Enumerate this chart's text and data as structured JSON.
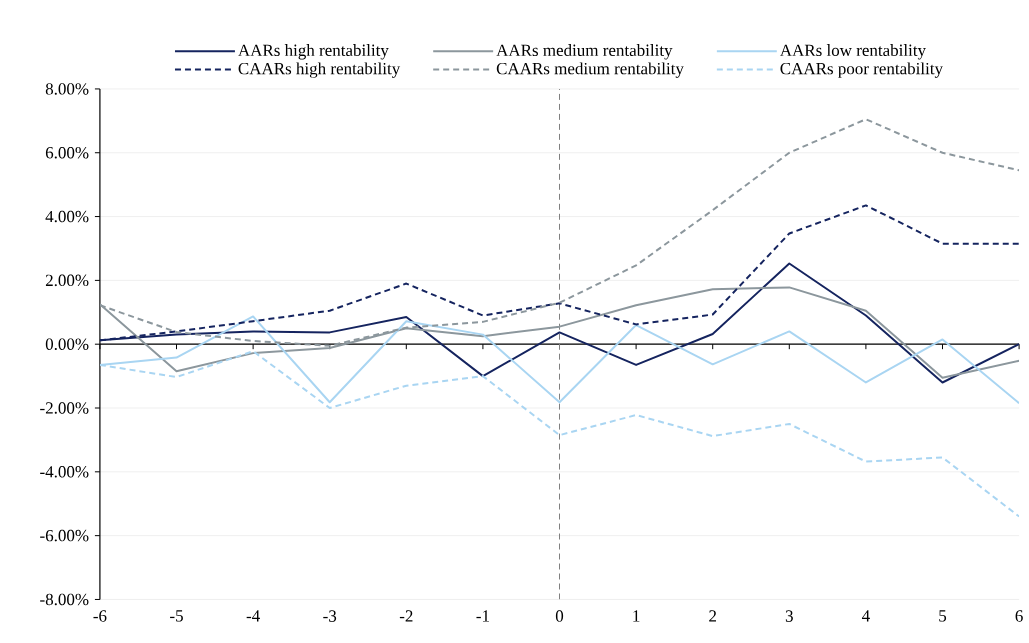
{
  "chart_data": {
    "type": "line",
    "x": [
      -6,
      -5,
      -4,
      -3,
      -2,
      -1,
      0,
      1,
      2,
      3,
      4,
      5,
      6
    ],
    "xlim": [
      -6,
      6
    ],
    "xticks": [
      -6,
      -5,
      -4,
      -3,
      -2,
      -1,
      0,
      1,
      2,
      3,
      4,
      5,
      6
    ],
    "ylim": [
      -8,
      8
    ],
    "yticks": [
      {
        "value": -8,
        "label": "-8.00%"
      },
      {
        "value": -6,
        "label": "-6.00%"
      },
      {
        "value": -4,
        "label": "-4.00%"
      },
      {
        "value": -2,
        "label": "-2.00%"
      },
      {
        "value": 0,
        "label": "0.00%"
      },
      {
        "value": 2,
        "label": "2.00%"
      },
      {
        "value": 4,
        "label": "4.00%"
      },
      {
        "value": 6,
        "label": "6.00%"
      },
      {
        "value": 8,
        "label": "8.00%"
      }
    ],
    "grid": "y",
    "legend": "top",
    "marker": "none",
    "ref_lines": [
      {
        "axis": "x",
        "value": 0,
        "color": "#808080",
        "line_style": "dashed"
      }
    ],
    "series": [
      {
        "name": "AARs high rentability",
        "color": "#15245f",
        "line_style": "solid",
        "values": [
          0.12,
          0.3,
          0.4,
          0.37,
          0.85,
          -1.0,
          0.37,
          -0.65,
          0.32,
          2.53,
          0.9,
          -1.2,
          0.0
        ]
      },
      {
        "name": "AARs medium rentability",
        "color": "#8c979d",
        "line_style": "solid",
        "values": [
          1.25,
          -0.85,
          -0.28,
          -0.12,
          0.5,
          0.25,
          0.55,
          1.22,
          1.72,
          1.78,
          1.05,
          -1.05,
          -0.52
        ]
      },
      {
        "name": "AARs low rentability",
        "color": "#a9d5f2",
        "line_style": "solid",
        "values": [
          -0.65,
          -0.42,
          0.87,
          -1.82,
          0.72,
          0.3,
          -1.82,
          0.6,
          -0.63,
          0.4,
          -1.2,
          0.15,
          -1.85
        ]
      },
      {
        "name": "CAARs high rentability",
        "color": "#15245f",
        "line_style": "dashed",
        "values": [
          0.12,
          0.4,
          0.72,
          1.05,
          1.9,
          0.9,
          1.28,
          0.62,
          0.93,
          3.47,
          4.35,
          3.15,
          3.15
        ]
      },
      {
        "name": "CAARs medium rentability",
        "color": "#8c979d",
        "line_style": "dashed",
        "values": [
          1.22,
          0.38,
          0.1,
          -0.05,
          0.52,
          0.7,
          1.3,
          2.47,
          4.2,
          6.0,
          7.05,
          6.0,
          5.45
        ]
      },
      {
        "name": "CAARs poor rentability",
        "color": "#a9d5f2",
        "line_style": "dashed",
        "values": [
          -0.65,
          -1.03,
          -0.22,
          -2.0,
          -1.3,
          -1.0,
          -2.85,
          -2.22,
          -2.88,
          -2.5,
          -3.68,
          -3.55,
          -5.4
        ]
      }
    ]
  }
}
